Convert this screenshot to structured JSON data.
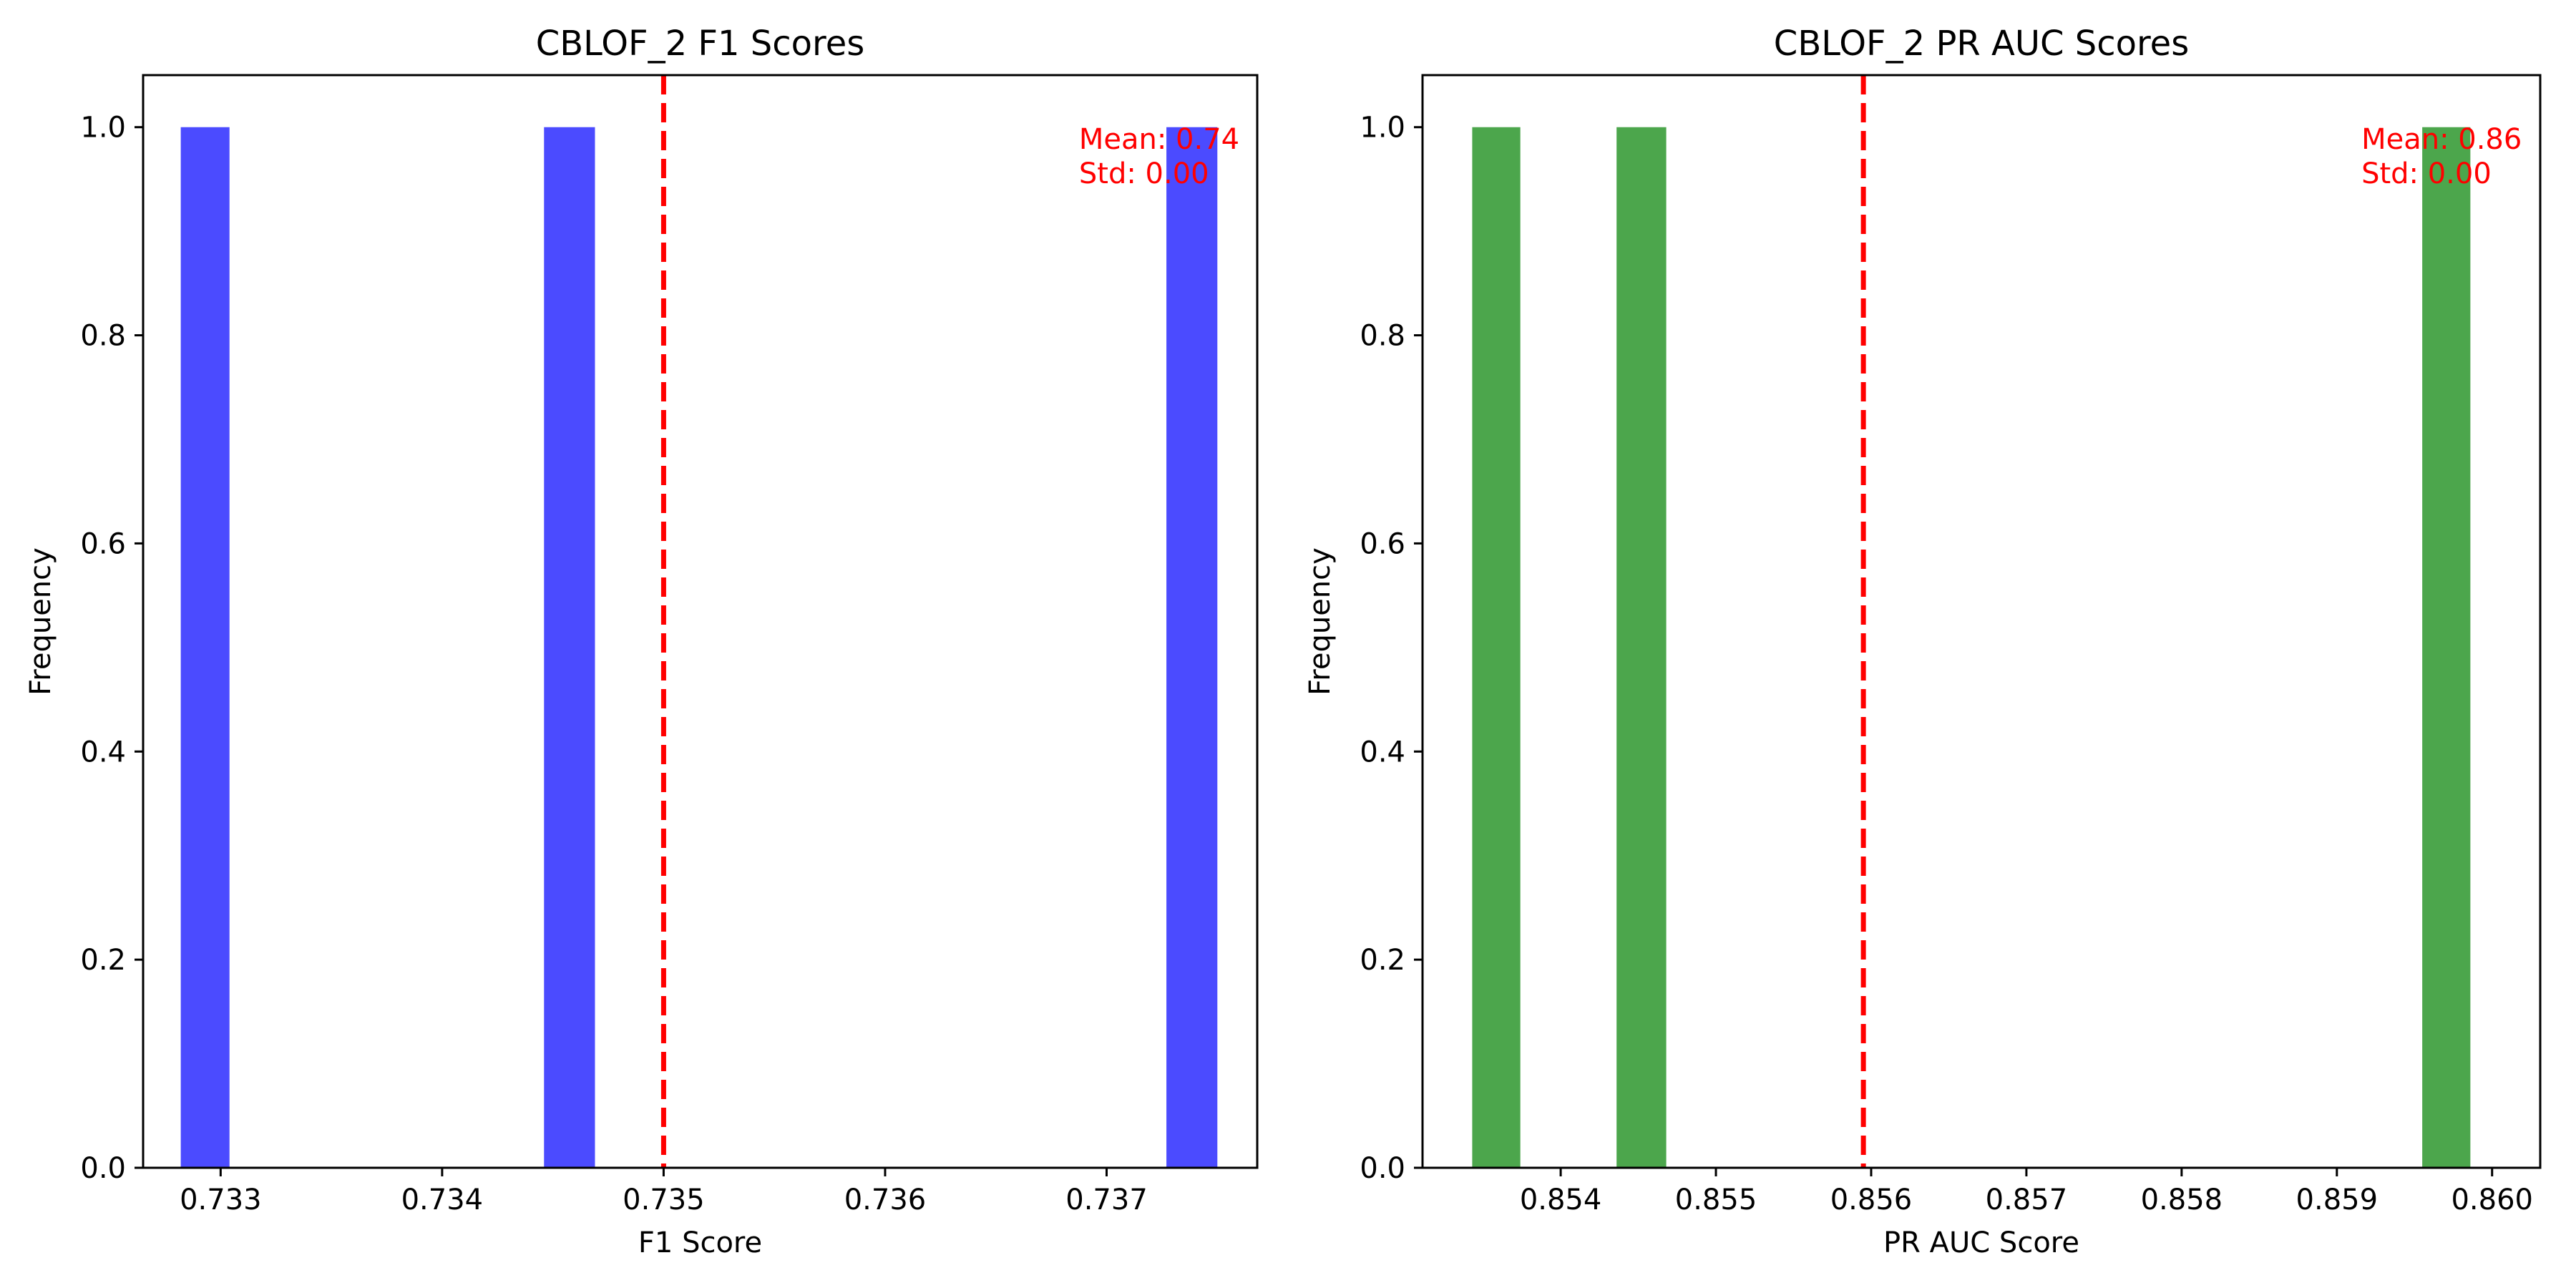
{
  "chart_data": [
    {
      "type": "bar",
      "title": "CBLOF_2 F1 Scores",
      "xlabel": "F1 Score",
      "ylabel": "Frequency",
      "xlim": [
        0.73265,
        0.73768
      ],
      "ylim": [
        0,
        1.05
      ],
      "xticks": [
        {
          "value": 0.733,
          "label": "0.733"
        },
        {
          "value": 0.734,
          "label": "0.734"
        },
        {
          "value": 0.735,
          "label": "0.735"
        },
        {
          "value": 0.736,
          "label": "0.736"
        },
        {
          "value": 0.737,
          "label": "0.737"
        }
      ],
      "yticks": [
        {
          "value": 0.0,
          "label": "0.0"
        },
        {
          "value": 0.2,
          "label": "0.2"
        },
        {
          "value": 0.4,
          "label": "0.4"
        },
        {
          "value": 0.6,
          "label": "0.6"
        },
        {
          "value": 0.8,
          "label": "0.8"
        },
        {
          "value": 1.0,
          "label": "1.0"
        }
      ],
      "bars": [
        {
          "x0": 0.73282,
          "x1": 0.73304,
          "value": 1
        },
        {
          "x0": 0.73446,
          "x1": 0.73469,
          "value": 1
        },
        {
          "x0": 0.73727,
          "x1": 0.7375,
          "value": 1
        }
      ],
      "bar_color": "#4b4bff",
      "mean_line": {
        "x": 0.735,
        "color": "#ff0000",
        "style": "dashed"
      },
      "annotation": {
        "lines": [
          "Mean: 0.74",
          "Std: 0.00"
        ],
        "color": "#ff0000"
      },
      "grid": false
    },
    {
      "type": "bar",
      "title": "CBLOF_2 PR AUC Scores",
      "xlabel": "PR AUC Score",
      "ylabel": "Frequency",
      "xlim": [
        0.85311,
        0.86031
      ],
      "ylim": [
        0,
        1.05
      ],
      "xticks": [
        {
          "value": 0.854,
          "label": "0.854"
        },
        {
          "value": 0.855,
          "label": "0.855"
        },
        {
          "value": 0.856,
          "label": "0.856"
        },
        {
          "value": 0.857,
          "label": "0.857"
        },
        {
          "value": 0.858,
          "label": "0.858"
        },
        {
          "value": 0.859,
          "label": "0.859"
        },
        {
          "value": 0.86,
          "label": "0.860"
        }
      ],
      "yticks": [
        {
          "value": 0.0,
          "label": "0.0"
        },
        {
          "value": 0.2,
          "label": "0.2"
        },
        {
          "value": 0.4,
          "label": "0.4"
        },
        {
          "value": 0.6,
          "label": "0.6"
        },
        {
          "value": 0.8,
          "label": "0.8"
        },
        {
          "value": 1.0,
          "label": "1.0"
        }
      ],
      "bars": [
        {
          "x0": 0.85343,
          "x1": 0.85374,
          "value": 1
        },
        {
          "x0": 0.85436,
          "x1": 0.85468,
          "value": 1
        },
        {
          "x0": 0.85955,
          "x1": 0.85986,
          "value": 1
        }
      ],
      "bar_color": "#4ca64c",
      "mean_line": {
        "x": 0.85595,
        "color": "#ff0000",
        "style": "dashed"
      },
      "annotation": {
        "lines": [
          "Mean: 0.86",
          "Std: 0.00"
        ],
        "color": "#ff0000"
      },
      "grid": false
    }
  ]
}
